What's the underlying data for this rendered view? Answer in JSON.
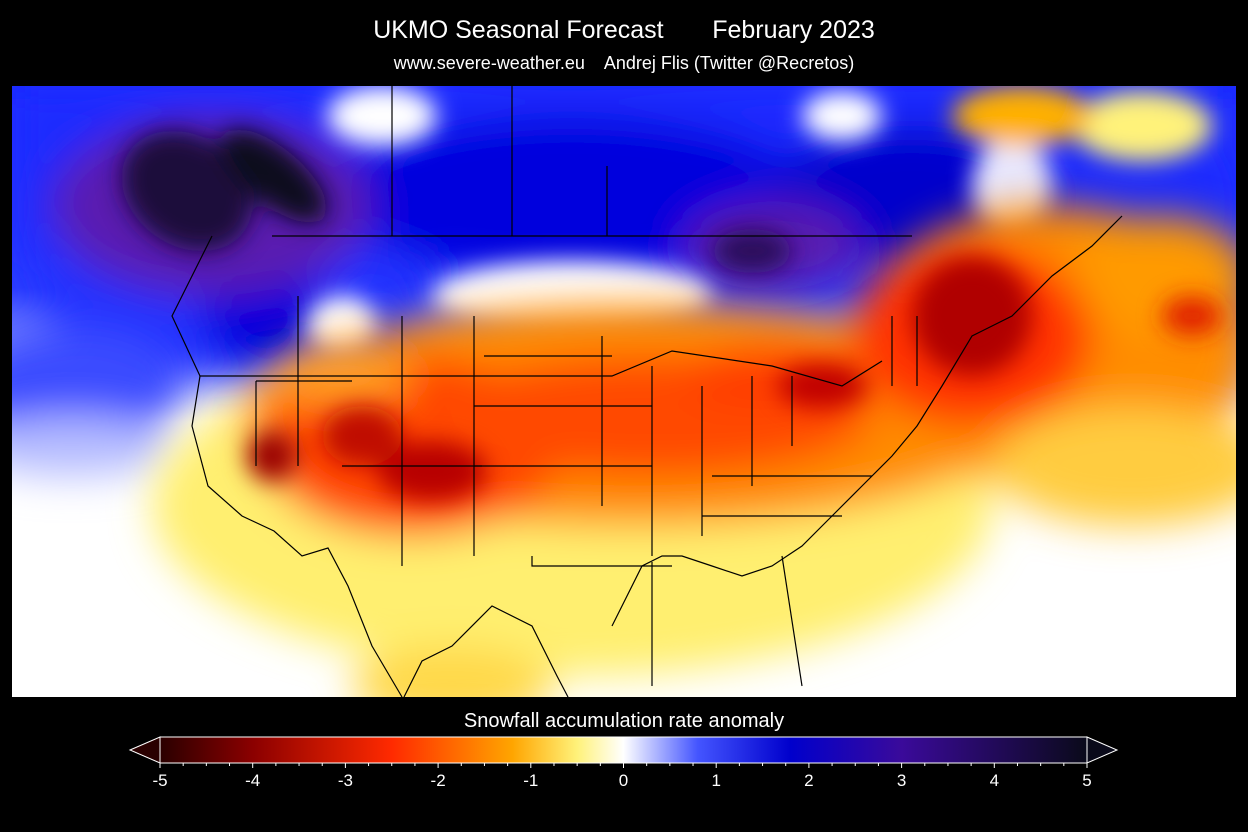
{
  "header": {
    "title": "UKMO Seasonal Forecast       February 2023",
    "subtitle": "www.severe-weather.eu    Andrej Flis (Twitter @Recretos)"
  },
  "colorbar": {
    "label": "Snowfall accumulation rate anomaly",
    "min": -5,
    "max": 5,
    "ticks": [
      "-5",
      "-4",
      "-3",
      "-2",
      "-1",
      "0",
      "1",
      "2",
      "3",
      "4",
      "5"
    ],
    "colors": {
      "neg_extreme": "#2a0000",
      "neg_dark": "#8b0000",
      "neg_mid": "#ff2a00",
      "neg_light": "#ffa500",
      "neg_pale": "#fff27a",
      "neutral": "#ffffff",
      "pos_light": "#4455ff",
      "pos_mid": "#0000cc",
      "pos_dark": "#3a0a9a",
      "pos_extreme": "#0a0a1a"
    }
  }
}
